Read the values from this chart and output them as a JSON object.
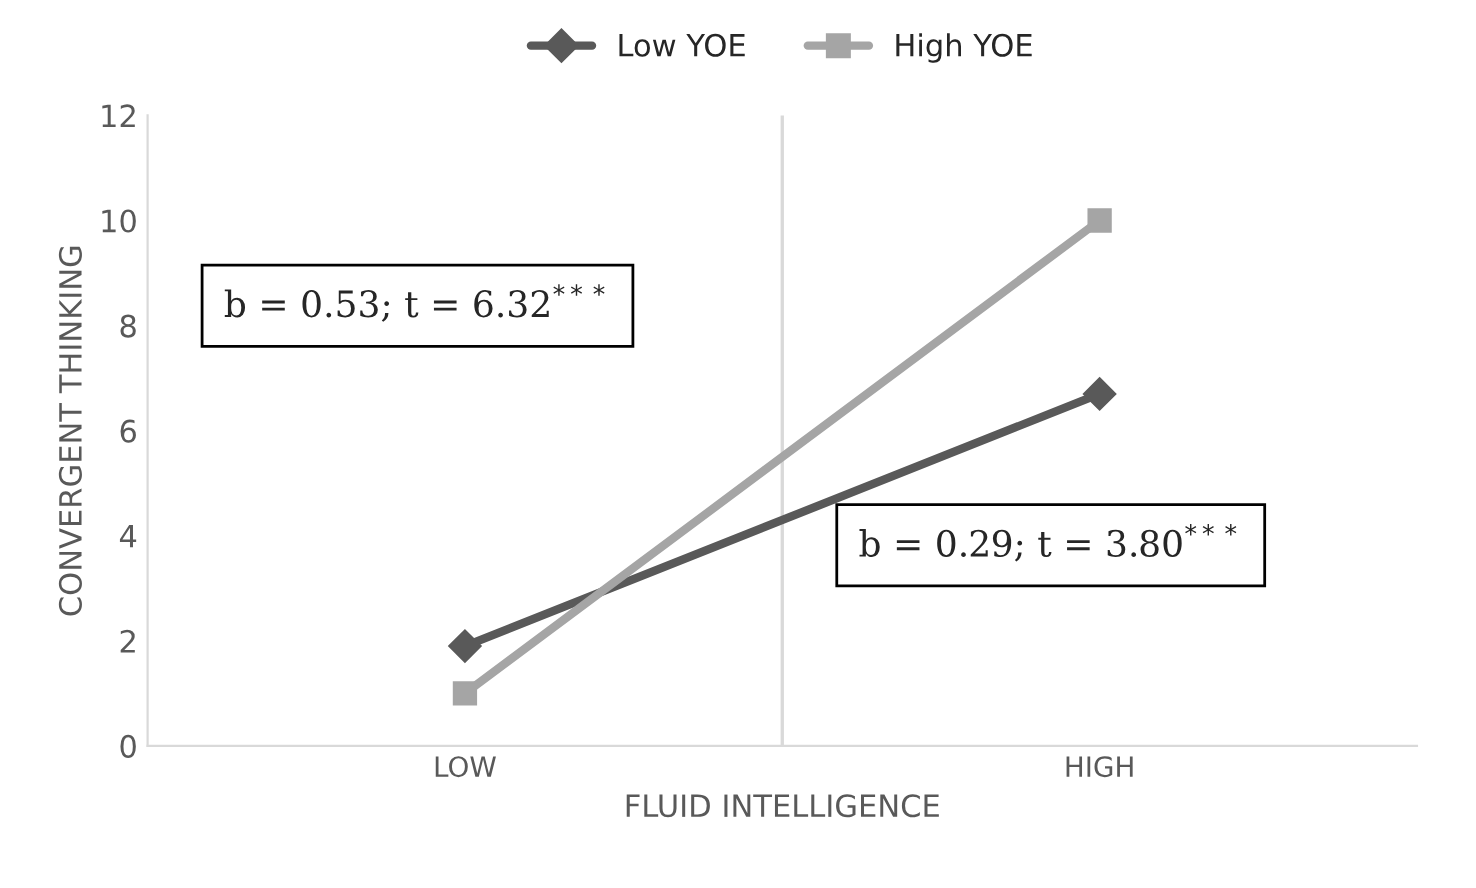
{
  "chart_data": {
    "type": "line",
    "xlabel": "FLUID INTELLIGENCE",
    "ylabel": "CONVERGENT THINKING",
    "categories": [
      "LOW",
      "HIGH"
    ],
    "series": [
      {
        "name": "Low YOE",
        "color": "#595959",
        "values": [
          1.9,
          6.7
        ],
        "marker": "diamond"
      },
      {
        "name": "High YOE",
        "color": "#a5a5a5",
        "values": [
          1.0,
          10.0
        ],
        "marker": "square"
      }
    ],
    "ylim": [
      0,
      12
    ],
    "yticks": [
      0,
      2,
      4,
      6,
      8,
      10,
      12
    ],
    "grid": "x",
    "legend": "top",
    "annotations": [
      "b = 0.53; t = 6.32$^{***}$",
      "b = 0.29; t = 3.80$^{***}$"
    ]
  }
}
